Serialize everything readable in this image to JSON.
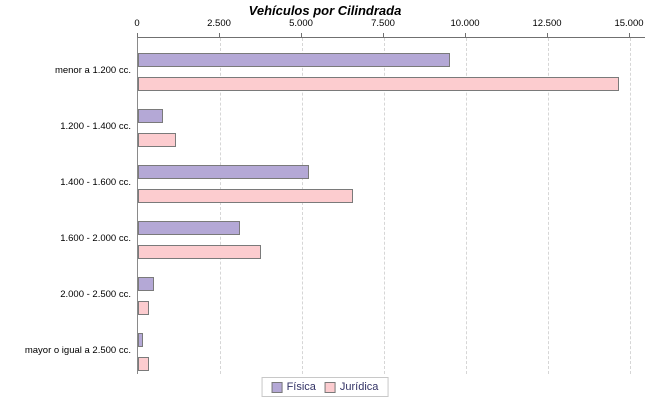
{
  "chart_data": {
    "type": "bar",
    "orientation": "horizontal",
    "title": "Vehículos por Cilindrada",
    "categories": [
      "menor a 1.200 cc.",
      "1.200 - 1.400 cc.",
      "1.400 - 1.600 cc.",
      "1.600 - 2.000 cc.",
      "2.000 - 2.500 cc.",
      "mayor o igual a 2.500 cc."
    ],
    "series": [
      {
        "name": "Física",
        "color": "#b4a8d6",
        "values": [
          9500,
          750,
          5200,
          3100,
          500,
          150
        ]
      },
      {
        "name": "Jurídica",
        "color": "#fccccf",
        "values": [
          14650,
          1150,
          6550,
          3750,
          350,
          330
        ]
      }
    ],
    "xlim": [
      0,
      15000
    ],
    "x_ticks": [
      {
        "value": 0,
        "label": "0"
      },
      {
        "value": 2500,
        "label": "2.500"
      },
      {
        "value": 5000,
        "label": "5.000"
      },
      {
        "value": 7500,
        "label": "7.500"
      },
      {
        "value": 10000,
        "label": "10.000"
      },
      {
        "value": 12500,
        "label": "12.500"
      },
      {
        "value": 15000,
        "label": "15.000"
      }
    ],
    "grid": "vertical-dashed",
    "axis_position": "top",
    "legend_position": "bottom-center"
  },
  "colors": {
    "fisica_fill": "#b4a8d6",
    "juridica_fill": "#fccccf",
    "bar_border": "#7a7a7a",
    "axis_line": "#707070",
    "gridline": "#d6d6d6",
    "legend_text": "#333366",
    "legend_border": "#c8c8c8",
    "title_text": "#000000",
    "background": "#ffffff"
  }
}
